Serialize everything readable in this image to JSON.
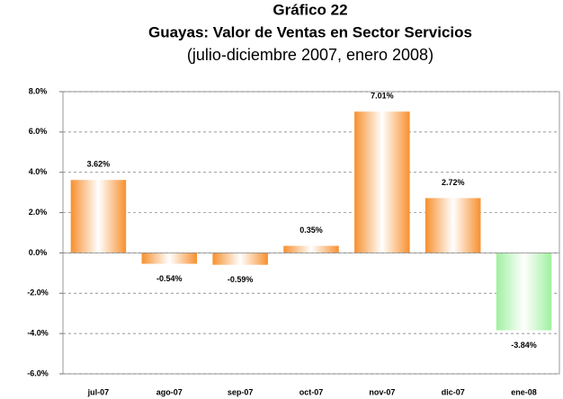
{
  "chart_data": {
    "type": "bar",
    "title": "Gráfico 22",
    "subtitle": "Guayas: Valor de Ventas en Sector Servicios",
    "note": "(julio-diciembre 2007, enero 2008)",
    "categories": [
      "jul-07",
      "ago-07",
      "sep-07",
      "oct-07",
      "nov-07",
      "dic-07",
      "ene-08"
    ],
    "values": [
      3.62,
      -0.54,
      -0.59,
      0.35,
      7.01,
      2.72,
      -3.84
    ],
    "value_labels": [
      "3.62%",
      "-0.54%",
      "-0.59%",
      "0.35%",
      "7.01%",
      "2.72%",
      "-3.84%"
    ],
    "colors": [
      "#f7902f",
      "#f7902f",
      "#f7902f",
      "#f7902f",
      "#f7902f",
      "#f7902f",
      "#9ff09f"
    ],
    "ylim": [
      -6,
      8
    ],
    "yticks": [
      {
        "value": -6,
        "label": "-6.0%"
      },
      {
        "value": -4,
        "label": "-4.0%"
      },
      {
        "value": -2,
        "label": "-2.0%"
      },
      {
        "value": 0,
        "label": "0.0%"
      },
      {
        "value": 2,
        "label": "2.0%"
      },
      {
        "value": 4,
        "label": "4.0%"
      },
      {
        "value": 6,
        "label": "6.0%"
      },
      {
        "value": 8,
        "label": "8.0%"
      }
    ],
    "grid": true
  }
}
